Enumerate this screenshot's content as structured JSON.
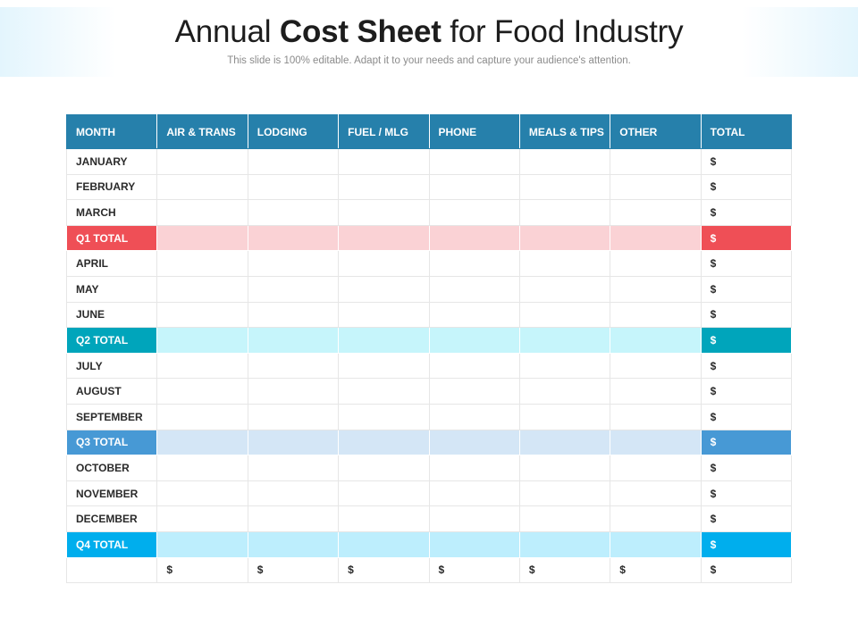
{
  "title": {
    "part1": "Annual ",
    "bold": "Cost Sheet",
    "part2": " for Food Industry"
  },
  "subtitle": "This slide is 100% editable. Adapt it to your needs and capture your audience's attention.",
  "table": {
    "headers": [
      "MONTH",
      "AIR & TRANS",
      "LODGING",
      "FUEL / MLG",
      "PHONE",
      "MEALS & TIPS",
      "OTHER",
      "TOTAL"
    ],
    "rows": [
      {
        "label": "JANUARY",
        "type": "month",
        "total": "$"
      },
      {
        "label": "FEBRUARY",
        "type": "month",
        "total": "$"
      },
      {
        "label": "MARCH",
        "type": "month",
        "total": "$"
      },
      {
        "label": "Q1 TOTAL",
        "type": "quarter",
        "quarter": "q1",
        "total": "$"
      },
      {
        "label": "APRIL",
        "type": "month",
        "total": "$"
      },
      {
        "label": "MAY",
        "type": "month",
        "total": "$"
      },
      {
        "label": "JUNE",
        "type": "month",
        "total": "$"
      },
      {
        "label": "Q2 TOTAL",
        "type": "quarter",
        "quarter": "q2",
        "total": "$"
      },
      {
        "label": "JULY",
        "type": "month",
        "total": "$"
      },
      {
        "label": "AUGUST",
        "type": "month",
        "total": "$"
      },
      {
        "label": "SEPTEMBER",
        "type": "month",
        "total": "$"
      },
      {
        "label": "Q3 TOTAL",
        "type": "quarter",
        "quarter": "q3",
        "total": "$"
      },
      {
        "label": "OCTOBER",
        "type": "month",
        "total": "$"
      },
      {
        "label": "NOVEMBER",
        "type": "month",
        "total": "$"
      },
      {
        "label": "DECEMBER",
        "type": "month",
        "total": "$"
      },
      {
        "label": "Q4 TOTAL",
        "type": "quarter",
        "quarter": "q4",
        "total": "$"
      }
    ],
    "footer": [
      "",
      "$",
      "$",
      "$",
      "$",
      "$",
      "$",
      "$"
    ]
  },
  "colors": {
    "header": "#2680ab",
    "q1": "#ef4f56",
    "q2": "#00a5bb",
    "q3": "#4799d5",
    "q4": "#00aeed"
  }
}
